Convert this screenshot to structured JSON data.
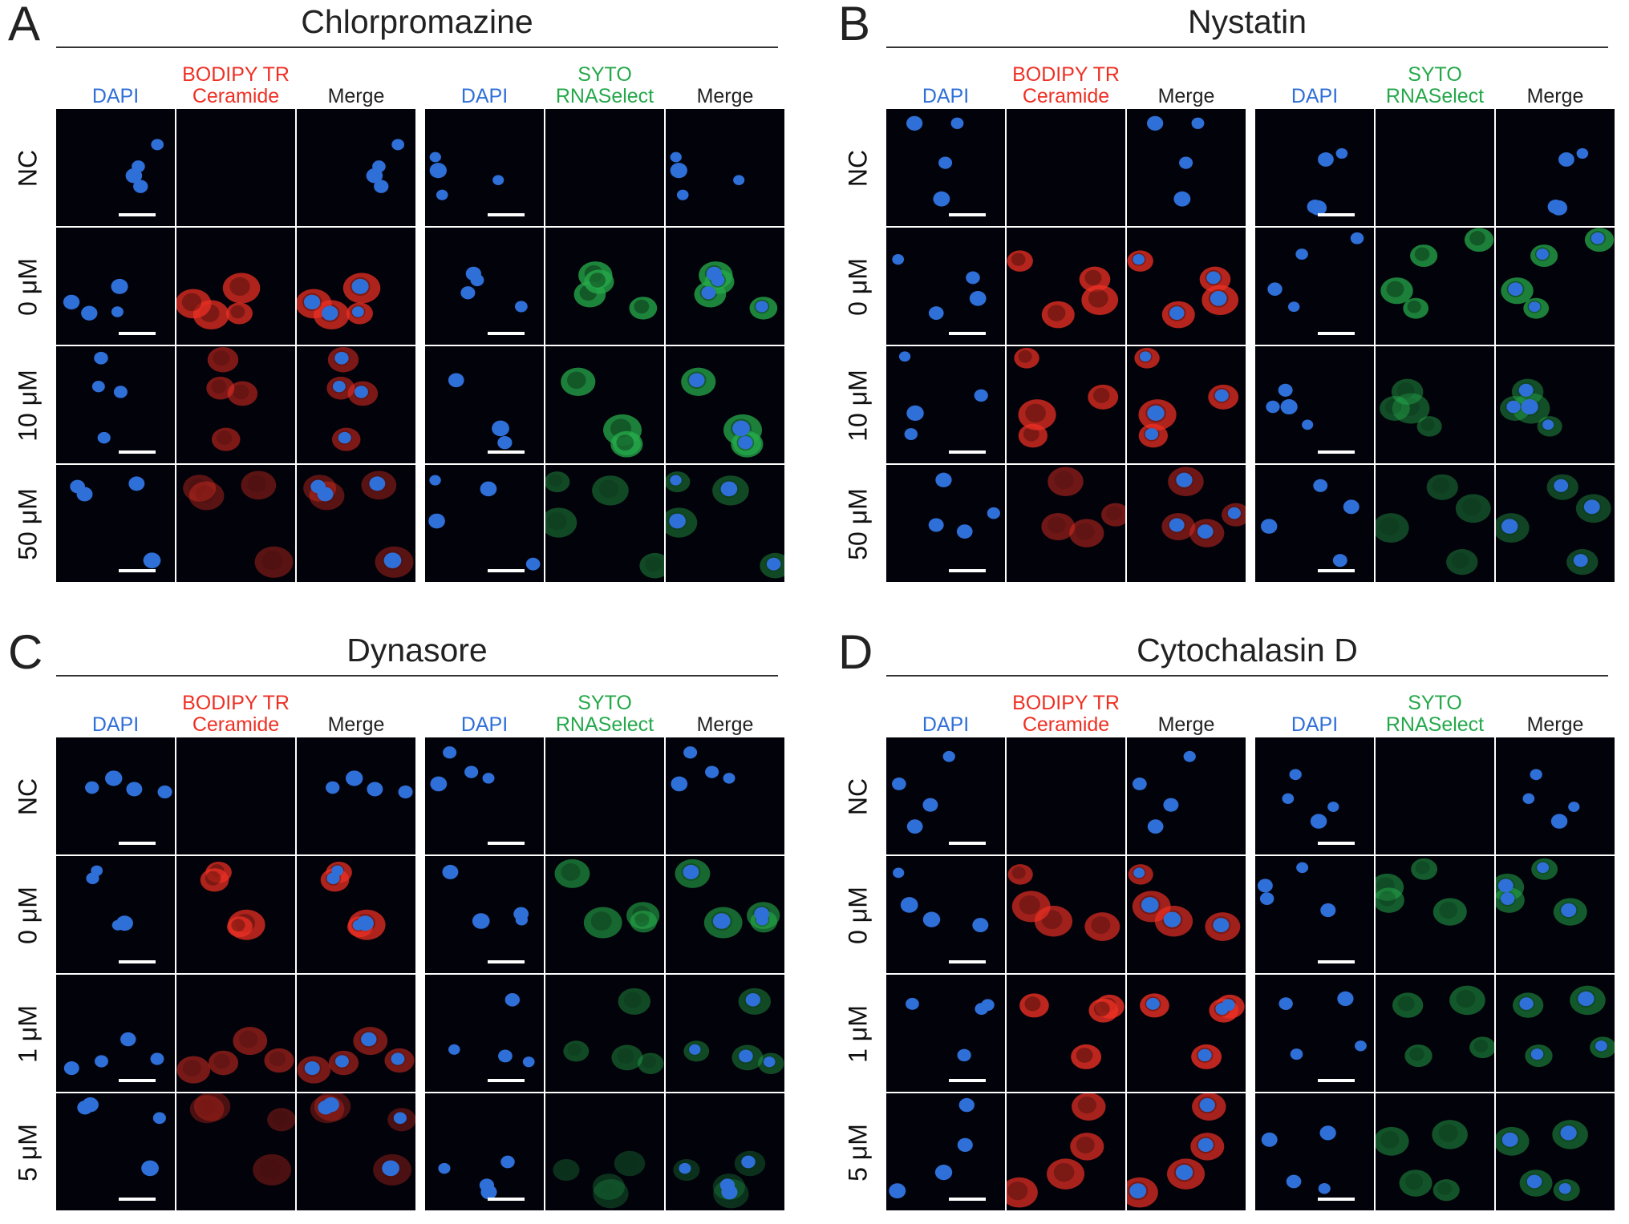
{
  "colors": {
    "dapi": "#2f6fd8",
    "red": "#ee3024",
    "green": "#25a84a",
    "text": "#111111"
  },
  "channels_left": [
    "DAPI",
    "BODIPY TR\nCeramide",
    "Merge"
  ],
  "channels_right": [
    "DAPI",
    "SYTO\nRNASelect",
    "Merge"
  ],
  "panels": [
    {
      "letter": "A",
      "title": "Chlorpromazine",
      "rows": [
        "NC",
        "0 μM",
        "10 μM",
        "50 μM"
      ]
    },
    {
      "letter": "B",
      "title": "Nystatin",
      "rows": [
        "NC",
        "0 μM",
        "10 μM",
        "50 μM"
      ]
    },
    {
      "letter": "C",
      "title": "Dynasore",
      "rows": [
        "NC",
        "0 μM",
        "1 μM",
        "5 μM"
      ]
    },
    {
      "letter": "D",
      "title": "Cytochalasin D",
      "rows": [
        "NC",
        "0 μM",
        "1 μM",
        "5 μM"
      ]
    }
  ],
  "stain_level": {
    "A": {
      "red": [
        0,
        0.8,
        0.45,
        0.2
      ],
      "green": [
        0,
        0.9,
        0.85,
        0.3
      ]
    },
    "B": {
      "red": [
        0,
        0.85,
        0.8,
        0.35
      ],
      "green": [
        0,
        0.85,
        0.35,
        0.25
      ]
    },
    "C": {
      "red": [
        0,
        0.8,
        0.4,
        0.1
      ],
      "green": [
        0,
        0.6,
        0.3,
        0.05
      ]
    },
    "D": {
      "red": [
        0,
        0.7,
        0.9,
        0.75
      ],
      "green": [
        0,
        0.5,
        0.45,
        0.4
      ]
    }
  }
}
